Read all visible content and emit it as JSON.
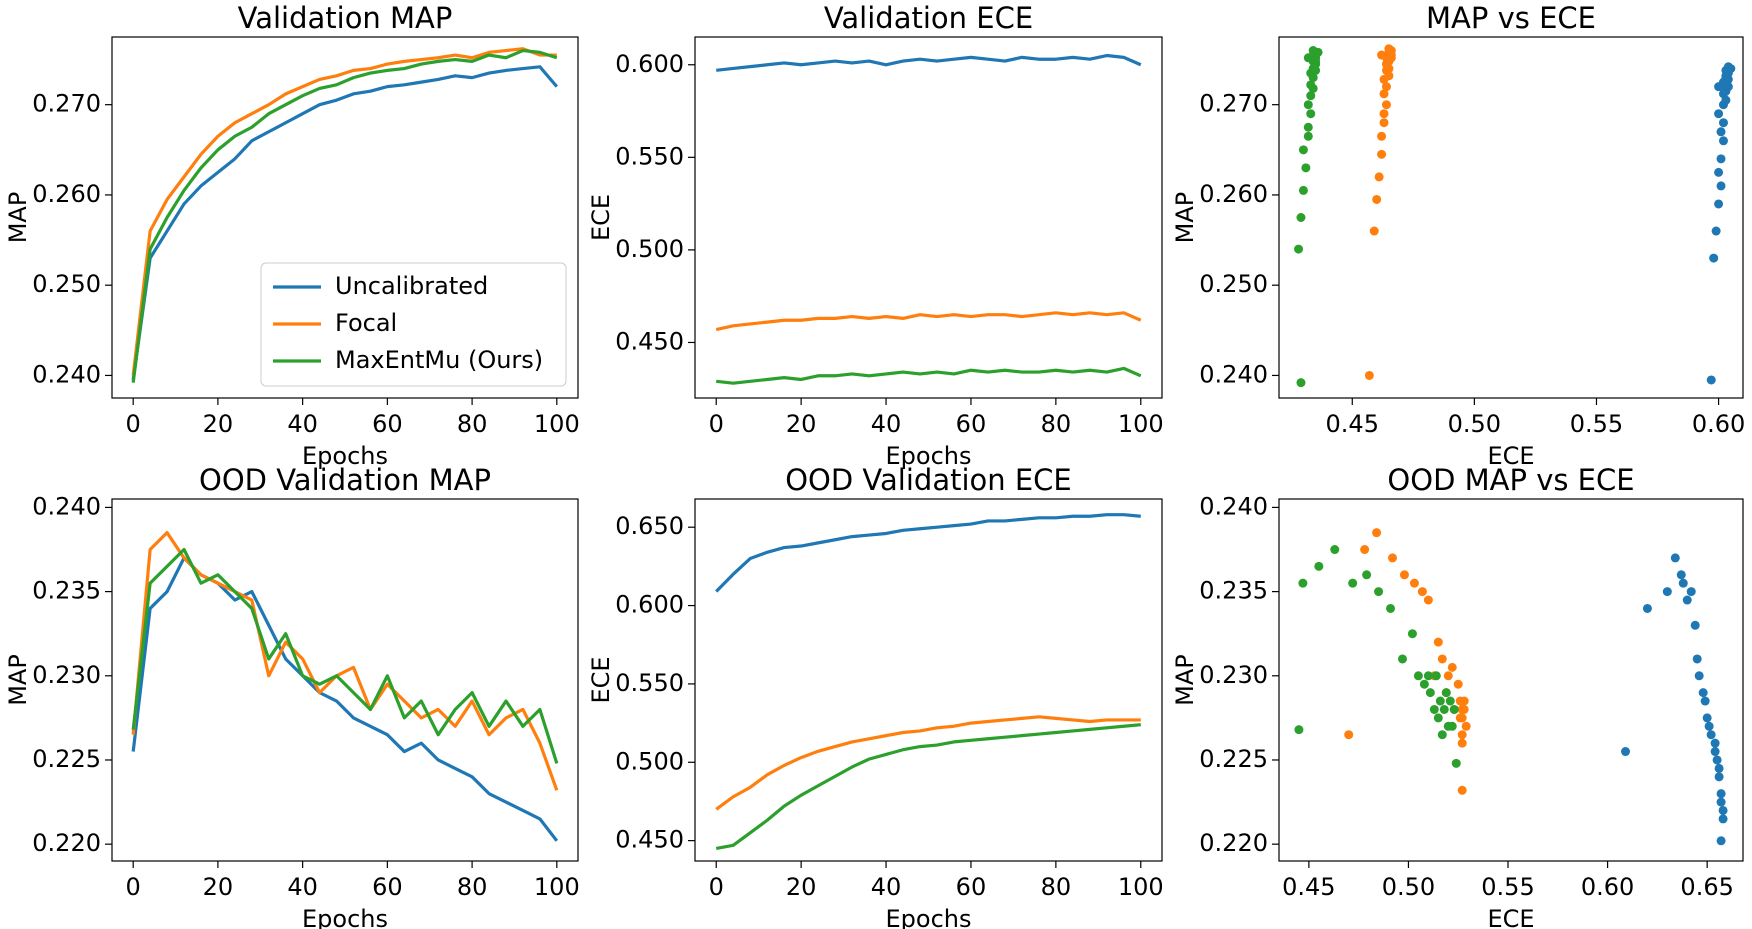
{
  "chart_data": [
    {
      "type": "line",
      "title": "Validation MAP",
      "xlabel": "Epochs",
      "ylabel": "MAP",
      "legend": "lower right",
      "xlim": [
        -5,
        105
      ],
      "ylim": [
        0.2375,
        0.2775
      ],
      "xticks": [
        0,
        20,
        40,
        60,
        80,
        100
      ],
      "yticks": [
        {
          "value": 0.24,
          "label": "0.240"
        },
        {
          "value": 0.25,
          "label": "0.250"
        },
        {
          "value": 0.26,
          "label": "0.260"
        },
        {
          "value": 0.27,
          "label": "0.270"
        }
      ],
      "x": [
        0,
        4,
        8,
        12,
        16,
        20,
        24,
        28,
        32,
        36,
        40,
        44,
        48,
        52,
        56,
        60,
        64,
        68,
        72,
        76,
        80,
        84,
        88,
        92,
        96,
        100
      ],
      "series": [
        {
          "name": "Uncalibrated",
          "color": "#1f77b4",
          "values": [
            0.2395,
            0.253,
            0.256,
            0.259,
            0.261,
            0.2625,
            0.264,
            0.266,
            0.267,
            0.268,
            0.269,
            0.27,
            0.2705,
            0.2712,
            0.2715,
            0.272,
            0.2722,
            0.2725,
            0.2728,
            0.2732,
            0.273,
            0.2735,
            0.2738,
            0.274,
            0.2742,
            0.272
          ]
        },
        {
          "name": "Focal",
          "color": "#ff7f0e",
          "values": [
            0.24,
            0.256,
            0.2595,
            0.262,
            0.2645,
            0.2665,
            0.268,
            0.269,
            0.27,
            0.2712,
            0.272,
            0.2728,
            0.2732,
            0.2738,
            0.274,
            0.2745,
            0.2748,
            0.275,
            0.2752,
            0.2755,
            0.2752,
            0.2758,
            0.276,
            0.2762,
            0.2755,
            0.2755
          ]
        },
        {
          "name": "MaxEntMu (Ours)",
          "color": "#2ca02c",
          "values": [
            0.2392,
            0.254,
            0.2575,
            0.2605,
            0.263,
            0.265,
            0.2665,
            0.2675,
            0.269,
            0.27,
            0.271,
            0.2718,
            0.2722,
            0.273,
            0.2735,
            0.2738,
            0.274,
            0.2745,
            0.2748,
            0.275,
            0.2748,
            0.2755,
            0.2752,
            0.276,
            0.2758,
            0.2752
          ]
        }
      ]
    },
    {
      "type": "line",
      "title": "Validation ECE",
      "xlabel": "Epochs",
      "ylabel": "ECE",
      "xlim": [
        -5,
        105
      ],
      "ylim": [
        0.42,
        0.615
      ],
      "xticks": [
        0,
        20,
        40,
        60,
        80,
        100
      ],
      "yticks": [
        {
          "value": 0.45,
          "label": "0.450"
        },
        {
          "value": 0.5,
          "label": "0.500"
        },
        {
          "value": 0.55,
          "label": "0.550"
        },
        {
          "value": 0.6,
          "label": "0.600"
        }
      ],
      "x": [
        0,
        4,
        8,
        12,
        16,
        20,
        24,
        28,
        32,
        36,
        40,
        44,
        48,
        52,
        56,
        60,
        64,
        68,
        72,
        76,
        80,
        84,
        88,
        92,
        96,
        100
      ],
      "series": [
        {
          "color": "#1f77b4",
          "values": [
            0.597,
            0.598,
            0.599,
            0.6,
            0.601,
            0.6,
            0.601,
            0.602,
            0.601,
            0.602,
            0.6,
            0.602,
            0.603,
            0.602,
            0.603,
            0.604,
            0.603,
            0.602,
            0.604,
            0.603,
            0.603,
            0.604,
            0.603,
            0.605,
            0.604,
            0.6
          ]
        },
        {
          "color": "#ff7f0e",
          "values": [
            0.457,
            0.459,
            0.46,
            0.461,
            0.462,
            0.462,
            0.463,
            0.463,
            0.464,
            0.463,
            0.464,
            0.463,
            0.465,
            0.464,
            0.465,
            0.464,
            0.465,
            0.465,
            0.464,
            0.465,
            0.466,
            0.465,
            0.466,
            0.465,
            0.466,
            0.462
          ]
        },
        {
          "color": "#2ca02c",
          "values": [
            0.429,
            0.428,
            0.429,
            0.43,
            0.431,
            0.43,
            0.432,
            0.432,
            0.433,
            0.432,
            0.433,
            0.434,
            0.433,
            0.434,
            0.433,
            0.435,
            0.434,
            0.435,
            0.434,
            0.434,
            0.435,
            0.434,
            0.435,
            0.434,
            0.436,
            0.432
          ]
        }
      ]
    },
    {
      "type": "scatter",
      "title": "MAP vs ECE",
      "xlabel": "ECE",
      "ylabel": "MAP",
      "xlim": [
        0.42,
        0.61
      ],
      "ylim": [
        0.2375,
        0.2775
      ],
      "xticks": [
        0.45,
        {
          "value": 0.5,
          "label": "0.50"
        },
        0.55,
        {
          "value": 0.6,
          "label": "0.60"
        }
      ],
      "yticks": [
        {
          "value": 0.24,
          "label": "0.240"
        },
        {
          "value": 0.25,
          "label": "0.250"
        },
        {
          "value": 0.26,
          "label": "0.260"
        },
        {
          "value": 0.27,
          "label": "0.270"
        }
      ],
      "series": [
        {
          "color": "#1f77b4",
          "x": [
            0.597,
            0.598,
            0.599,
            0.6,
            0.601,
            0.6,
            0.601,
            0.602,
            0.601,
            0.602,
            0.6,
            0.602,
            0.603,
            0.602,
            0.603,
            0.604,
            0.603,
            0.602,
            0.604,
            0.603,
            0.603,
            0.604,
            0.603,
            0.605,
            0.604,
            0.6
          ],
          "y": [
            0.2395,
            0.253,
            0.256,
            0.259,
            0.261,
            0.2625,
            0.264,
            0.266,
            0.267,
            0.268,
            0.269,
            0.27,
            0.2705,
            0.2712,
            0.2715,
            0.272,
            0.2722,
            0.2725,
            0.2728,
            0.2732,
            0.273,
            0.2735,
            0.2738,
            0.274,
            0.2742,
            0.272
          ]
        },
        {
          "color": "#ff7f0e",
          "x": [
            0.457,
            0.459,
            0.46,
            0.461,
            0.462,
            0.462,
            0.463,
            0.463,
            0.464,
            0.463,
            0.464,
            0.463,
            0.465,
            0.464,
            0.465,
            0.464,
            0.465,
            0.465,
            0.464,
            0.465,
            0.466,
            0.465,
            0.466,
            0.465,
            0.466,
            0.462
          ],
          "y": [
            0.24,
            0.256,
            0.2595,
            0.262,
            0.2645,
            0.2665,
            0.268,
            0.269,
            0.27,
            0.2712,
            0.272,
            0.2728,
            0.2732,
            0.2738,
            0.274,
            0.2745,
            0.2748,
            0.275,
            0.2752,
            0.2755,
            0.2752,
            0.2758,
            0.276,
            0.2762,
            0.2755,
            0.2755
          ]
        },
        {
          "color": "#2ca02c",
          "x": [
            0.429,
            0.428,
            0.429,
            0.43,
            0.431,
            0.43,
            0.432,
            0.432,
            0.433,
            0.432,
            0.433,
            0.434,
            0.433,
            0.434,
            0.433,
            0.435,
            0.434,
            0.435,
            0.434,
            0.434,
            0.435,
            0.434,
            0.435,
            0.434,
            0.436,
            0.432
          ],
          "y": [
            0.2392,
            0.254,
            0.2575,
            0.2605,
            0.263,
            0.265,
            0.2665,
            0.2675,
            0.269,
            0.27,
            0.271,
            0.2718,
            0.2722,
            0.273,
            0.2735,
            0.2738,
            0.274,
            0.2745,
            0.2748,
            0.275,
            0.2748,
            0.2755,
            0.2752,
            0.276,
            0.2758,
            0.2752
          ]
        }
      ]
    },
    {
      "type": "line",
      "title": "OOD Validation MAP",
      "xlabel": "Epochs",
      "ylabel": "MAP",
      "xlim": [
        -5,
        105
      ],
      "ylim": [
        0.219,
        0.2405
      ],
      "xticks": [
        0,
        20,
        40,
        60,
        80,
        100
      ],
      "yticks": [
        {
          "value": 0.22,
          "label": "0.220"
        },
        0.225,
        {
          "value": 0.23,
          "label": "0.230"
        },
        0.235,
        {
          "value": 0.24,
          "label": "0.240"
        }
      ],
      "x": [
        0,
        4,
        8,
        12,
        16,
        20,
        24,
        28,
        32,
        36,
        40,
        44,
        48,
        52,
        56,
        60,
        64,
        68,
        72,
        76,
        80,
        84,
        88,
        92,
        96,
        100
      ],
      "series": [
        {
          "color": "#1f77b4",
          "values": [
            0.2255,
            0.234,
            0.235,
            0.237,
            0.236,
            0.2355,
            0.2345,
            0.235,
            0.233,
            0.231,
            0.23,
            0.229,
            0.2285,
            0.2275,
            0.227,
            0.2265,
            0.2255,
            0.226,
            0.225,
            0.2245,
            0.224,
            0.223,
            0.2225,
            0.222,
            0.2215,
            0.2202
          ]
        },
        {
          "color": "#ff7f0e",
          "values": [
            0.2265,
            0.2375,
            0.2385,
            0.237,
            0.236,
            0.2355,
            0.235,
            0.2345,
            0.23,
            0.232,
            0.231,
            0.229,
            0.23,
            0.2305,
            0.228,
            0.2295,
            0.2285,
            0.2275,
            0.228,
            0.227,
            0.2285,
            0.2265,
            0.2275,
            0.228,
            0.226,
            0.2232
          ]
        },
        {
          "color": "#2ca02c",
          "values": [
            0.2268,
            0.2355,
            0.2365,
            0.2375,
            0.2355,
            0.236,
            0.235,
            0.234,
            0.231,
            0.2325,
            0.23,
            0.2295,
            0.23,
            0.229,
            0.228,
            0.23,
            0.2275,
            0.2285,
            0.2265,
            0.228,
            0.229,
            0.227,
            0.2285,
            0.227,
            0.228,
            0.2248
          ]
        }
      ]
    },
    {
      "type": "line",
      "title": "OOD Validation ECE",
      "xlabel": "Epochs",
      "ylabel": "ECE",
      "xlim": [
        -5,
        105
      ],
      "ylim": [
        0.437,
        0.668
      ],
      "xticks": [
        0,
        20,
        40,
        60,
        80,
        100
      ],
      "yticks": [
        {
          "value": 0.45,
          "label": "0.450"
        },
        {
          "value": 0.5,
          "label": "0.500"
        },
        {
          "value": 0.55,
          "label": "0.550"
        },
        {
          "value": 0.6,
          "label": "0.600"
        },
        {
          "value": 0.65,
          "label": "0.650"
        }
      ],
      "x": [
        0,
        4,
        8,
        12,
        16,
        20,
        24,
        28,
        32,
        36,
        40,
        44,
        48,
        52,
        56,
        60,
        64,
        68,
        72,
        76,
        80,
        84,
        88,
        92,
        96,
        100
      ],
      "series": [
        {
          "color": "#1f77b4",
          "values": [
            0.609,
            0.62,
            0.63,
            0.634,
            0.637,
            0.638,
            0.64,
            0.642,
            0.644,
            0.645,
            0.646,
            0.648,
            0.649,
            0.65,
            0.651,
            0.652,
            0.654,
            0.654,
            0.655,
            0.656,
            0.656,
            0.657,
            0.657,
            0.658,
            0.658,
            0.657
          ]
        },
        {
          "color": "#ff7f0e",
          "values": [
            0.47,
            0.478,
            0.484,
            0.492,
            0.498,
            0.503,
            0.507,
            0.51,
            0.513,
            0.515,
            0.517,
            0.519,
            0.52,
            0.522,
            0.523,
            0.525,
            0.526,
            0.527,
            0.528,
            0.529,
            0.528,
            0.527,
            0.526,
            0.527,
            0.527,
            0.527
          ]
        },
        {
          "color": "#2ca02c",
          "values": [
            0.445,
            0.447,
            0.455,
            0.463,
            0.472,
            0.479,
            0.485,
            0.491,
            0.497,
            0.502,
            0.505,
            0.508,
            0.51,
            0.511,
            0.513,
            0.514,
            0.515,
            0.516,
            0.517,
            0.518,
            0.519,
            0.52,
            0.521,
            0.522,
            0.523,
            0.524
          ]
        }
      ]
    },
    {
      "type": "scatter",
      "title": "OOD MAP vs ECE",
      "xlabel": "ECE",
      "ylabel": "MAP",
      "xlim": [
        0.435,
        0.668
      ],
      "ylim": [
        0.219,
        0.2405
      ],
      "xticks": [
        0.45,
        {
          "value": 0.5,
          "label": "0.50"
        },
        0.55,
        {
          "value": 0.6,
          "label": "0.60"
        },
        0.65
      ],
      "yticks": [
        {
          "value": 0.22,
          "label": "0.220"
        },
        0.225,
        {
          "value": 0.23,
          "label": "0.230"
        },
        0.235,
        {
          "value": 0.24,
          "label": "0.240"
        }
      ],
      "series": [
        {
          "color": "#1f77b4",
          "x": [
            0.609,
            0.62,
            0.63,
            0.634,
            0.637,
            0.638,
            0.64,
            0.642,
            0.644,
            0.645,
            0.646,
            0.648,
            0.649,
            0.65,
            0.651,
            0.652,
            0.654,
            0.654,
            0.655,
            0.656,
            0.656,
            0.657,
            0.657,
            0.658,
            0.658,
            0.657
          ],
          "y": [
            0.2255,
            0.234,
            0.235,
            0.237,
            0.236,
            0.2355,
            0.2345,
            0.235,
            0.233,
            0.231,
            0.23,
            0.229,
            0.2285,
            0.2275,
            0.227,
            0.2265,
            0.2255,
            0.226,
            0.225,
            0.2245,
            0.224,
            0.223,
            0.2225,
            0.222,
            0.2215,
            0.2202
          ]
        },
        {
          "color": "#ff7f0e",
          "x": [
            0.47,
            0.478,
            0.484,
            0.492,
            0.498,
            0.503,
            0.507,
            0.51,
            0.513,
            0.515,
            0.517,
            0.519,
            0.52,
            0.522,
            0.523,
            0.525,
            0.526,
            0.527,
            0.528,
            0.529,
            0.528,
            0.527,
            0.526,
            0.527,
            0.527,
            0.527
          ],
          "y": [
            0.2265,
            0.2375,
            0.2385,
            0.237,
            0.236,
            0.2355,
            0.235,
            0.2345,
            0.23,
            0.232,
            0.231,
            0.229,
            0.23,
            0.2305,
            0.228,
            0.2295,
            0.2285,
            0.2275,
            0.228,
            0.227,
            0.2285,
            0.2265,
            0.2275,
            0.228,
            0.226,
            0.2232
          ]
        },
        {
          "color": "#2ca02c",
          "x": [
            0.445,
            0.447,
            0.455,
            0.463,
            0.472,
            0.479,
            0.485,
            0.491,
            0.497,
            0.502,
            0.505,
            0.508,
            0.51,
            0.511,
            0.513,
            0.514,
            0.515,
            0.516,
            0.517,
            0.518,
            0.519,
            0.52,
            0.521,
            0.522,
            0.523,
            0.524
          ],
          "y": [
            0.2268,
            0.2355,
            0.2365,
            0.2375,
            0.2355,
            0.236,
            0.235,
            0.234,
            0.231,
            0.2325,
            0.23,
            0.2295,
            0.23,
            0.229,
            0.228,
            0.23,
            0.2275,
            0.2285,
            0.2265,
            0.228,
            0.229,
            0.227,
            0.2285,
            0.227,
            0.228,
            0.2248
          ]
        }
      ]
    }
  ]
}
